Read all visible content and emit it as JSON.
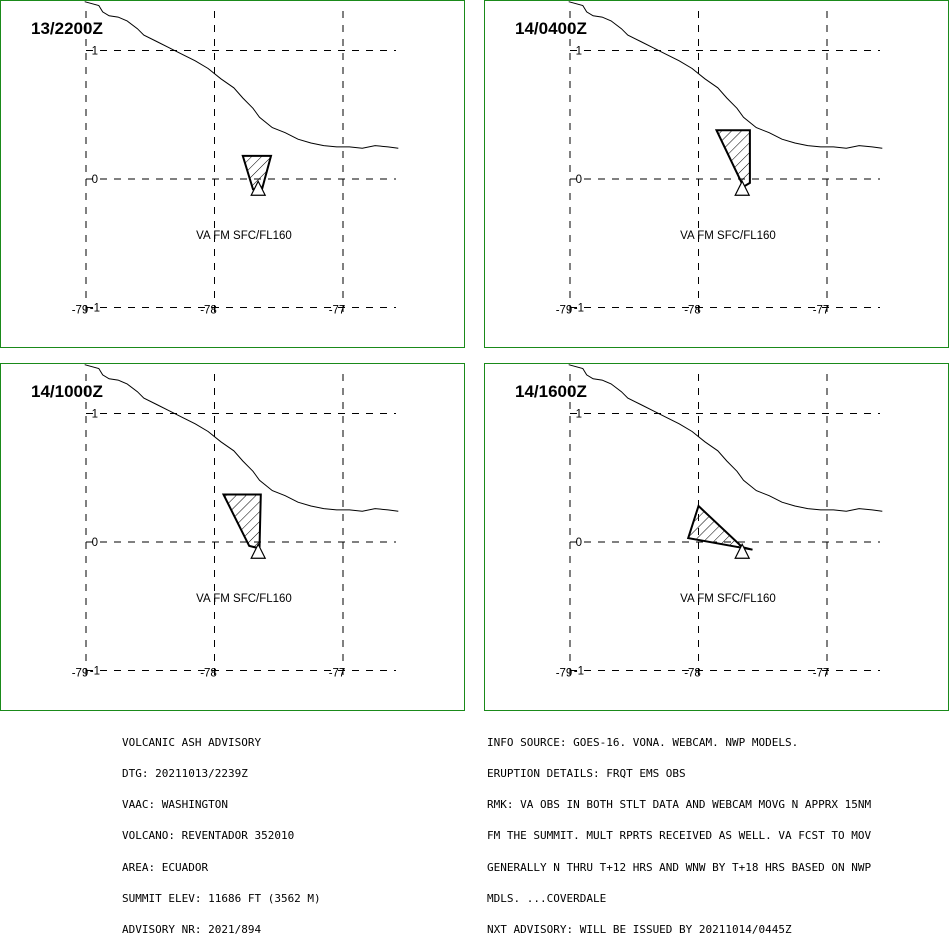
{
  "panels": [
    {
      "time": "13/2200Z",
      "va_label": "VA FM SFC/FL160",
      "ash_polygon": [
        [
          -77.78,
          0.18
        ],
        [
          -77.56,
          0.18
        ],
        [
          -77.63,
          -0.08
        ],
        [
          -77.7,
          -0.08
        ]
      ]
    },
    {
      "time": "14/0400Z",
      "va_label": "VA FM SFC/FL160",
      "ash_polygon": [
        [
          -77.86,
          0.38
        ],
        [
          -77.6,
          0.38
        ],
        [
          -77.6,
          -0.03
        ],
        [
          -77.65,
          -0.06
        ]
      ]
    },
    {
      "time": "14/1000Z",
      "va_label": "VA FM SFC/FL160",
      "ash_polygon": [
        [
          -77.93,
          0.37
        ],
        [
          -77.64,
          0.37
        ],
        [
          -77.65,
          -0.05
        ],
        [
          -77.73,
          -0.03
        ]
      ]
    },
    {
      "time": "14/1600Z",
      "va_label": "VA FM SFC/FL160",
      "ash_polygon": [
        [
          -78.0,
          0.28
        ],
        [
          -78.08,
          0.03
        ],
        [
          -77.58,
          -0.06
        ],
        [
          -77.66,
          -0.04
        ]
      ]
    }
  ],
  "axes": {
    "lon_ticks": [
      "-79",
      "-78",
      "-77"
    ],
    "lat_ticks": [
      "1",
      "0",
      "-1"
    ],
    "lon_values": [
      -79,
      -78,
      -77
    ],
    "lat_values": [
      1,
      0,
      -1
    ]
  },
  "volcano": {
    "lon": -77.66,
    "lat": -0.08
  },
  "coastline": [
    [
      -79.01,
      1.38
    ],
    [
      -78.9,
      1.35
    ],
    [
      -78.87,
      1.3
    ],
    [
      -78.82,
      1.27
    ],
    [
      -78.75,
      1.26
    ],
    [
      -78.68,
      1.23
    ],
    [
      -78.6,
      1.17
    ],
    [
      -78.55,
      1.12
    ],
    [
      -78.45,
      1.07
    ],
    [
      -78.35,
      1.02
    ],
    [
      -78.25,
      0.97
    ],
    [
      -78.15,
      0.92
    ],
    [
      -78.05,
      0.86
    ],
    [
      -77.95,
      0.78
    ],
    [
      -77.85,
      0.71
    ],
    [
      -77.78,
      0.63
    ],
    [
      -77.7,
      0.55
    ],
    [
      -77.65,
      0.48
    ],
    [
      -77.55,
      0.4
    ],
    [
      -77.45,
      0.36
    ],
    [
      -77.35,
      0.31
    ],
    [
      -77.25,
      0.28
    ],
    [
      -77.15,
      0.26
    ],
    [
      -77.05,
      0.25
    ],
    [
      -76.95,
      0.25
    ],
    [
      -76.85,
      0.24
    ],
    [
      -76.75,
      0.26
    ],
    [
      -76.65,
      0.25
    ],
    [
      -76.57,
      0.24
    ]
  ],
  "advisory_left": [
    "VOLCANIC ASH ADVISORY",
    "DTG: 20211013/2239Z",
    "VAAC: WASHINGTON",
    "VOLCANO: REVENTADOR 352010",
    "AREA: ECUADOR",
    "SUMMIT ELEV: 11686 FT (3562 M)",
    "ADVISORY NR: 2021/894"
  ],
  "advisory_right": [
    "INFO SOURCE: GOES-16. VONA. WEBCAM. NWP MODELS.",
    "ERUPTION DETAILS: FRQT EMS OBS",
    "RMK: VA OBS IN BOTH STLT DATA AND WEBCAM MOVG N APPRX 15NM",
    "FM THE SUMMIT. MULT RPRTS RECEIVED AS WELL. VA FCST TO MOV",
    "GENERALLY N THRU T+12 HRS AND WNW BY T+18 HRS BASED ON NWP",
    "MDLS. ...COVERDALE",
    "NXT ADVISORY: WILL BE ISSUED BY 20211014/0445Z"
  ],
  "colors": {
    "panel_border": "#1a8a1a",
    "lines": "#000000",
    "background": "#ffffff"
  }
}
